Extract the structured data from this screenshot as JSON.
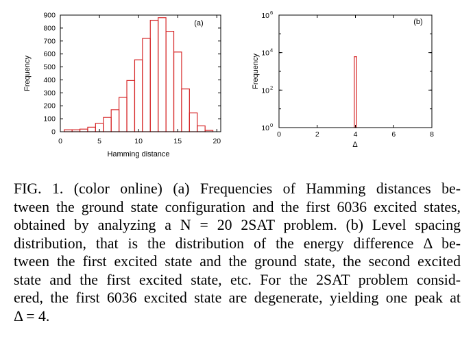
{
  "chart_data": [
    {
      "type": "bar",
      "panel_label": "(a)",
      "xlabel": "Hamming distance",
      "ylabel": "Frequency",
      "xlim": [
        0,
        20.5
      ],
      "ylim": [
        0,
        900
      ],
      "xticks": [
        "0",
        "5",
        "10",
        "15",
        "20"
      ],
      "yticks": [
        "0",
        "100",
        "200",
        "300",
        "400",
        "500",
        "600",
        "700",
        "800",
        "900"
      ],
      "bar_color": "#d62728",
      "x": [
        1,
        2,
        3,
        4,
        5,
        6,
        7,
        8,
        9,
        10,
        11,
        12,
        13,
        14,
        15,
        16,
        17,
        18,
        19
      ],
      "values": [
        15,
        15,
        20,
        35,
        65,
        110,
        170,
        265,
        395,
        555,
        720,
        860,
        880,
        775,
        615,
        330,
        145,
        45,
        10
      ]
    },
    {
      "type": "bar",
      "panel_label": "(b)",
      "xlabel": "Δ",
      "ylabel": "Frequency",
      "xlim": [
        0,
        8
      ],
      "ylim": [
        1,
        1000000
      ],
      "yscale": "log",
      "xticks": [
        "0",
        "2",
        "4",
        "6",
        "8"
      ],
      "yticks": [
        {
          "base": "10",
          "exp": "0"
        },
        {
          "base": "10",
          "exp": "2"
        },
        {
          "base": "10",
          "exp": "4"
        },
        {
          "base": "10",
          "exp": "6"
        }
      ],
      "bar_color": "#d62728",
      "x": [
        4
      ],
      "values": [
        6036
      ]
    }
  ],
  "caption": {
    "lines": [
      "FIG. 1.  (color online) (a) Frequencies of Hamming distances be-",
      "tween the ground state configuration and the first 6036 excited states,",
      "obtained by analyzing a N = 20 2SAT problem.  (b) Level spacing",
      "distribution, that is the distribution of the energy difference Δ be-",
      "tween the first excited state and the ground state, the second excited",
      "state and the first excited state, etc.  For the 2SAT problem consid-",
      "ered, the first 6036 excited state are degenerate, yielding one peak at",
      "Δ = 4."
    ]
  }
}
